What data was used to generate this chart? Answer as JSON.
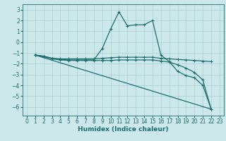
{
  "xlabel": "Humidex (Indice chaleur)",
  "xlim": [
    -0.5,
    23.5
  ],
  "ylim": [
    -6.8,
    3.5
  ],
  "yticks": [
    3,
    2,
    1,
    0,
    -1,
    -2,
    -3,
    -4,
    -5,
    -6
  ],
  "xticks": [
    0,
    1,
    2,
    3,
    4,
    5,
    6,
    7,
    8,
    9,
    10,
    11,
    12,
    13,
    14,
    15,
    16,
    17,
    18,
    19,
    20,
    21,
    22,
    23
  ],
  "bg_color": "#cce8ea",
  "line_color": "#1a6e6e",
  "grid_color": "#aacfcf",
  "lines": [
    {
      "x": [
        1,
        2,
        3,
        4,
        5,
        6,
        7,
        8,
        9,
        10,
        11,
        12,
        13,
        14,
        15,
        16,
        17,
        18,
        19,
        20,
        21,
        22
      ],
      "y": [
        -1.2,
        -1.3,
        -1.5,
        -1.6,
        -1.65,
        -1.65,
        -1.65,
        -1.65,
        -0.6,
        1.2,
        2.8,
        1.5,
        1.6,
        1.6,
        2.0,
        -1.2,
        -1.8,
        -2.7,
        -3.1,
        -3.3,
        -4.0,
        -6.2
      ],
      "marker": true
    },
    {
      "x": [
        1,
        2,
        3,
        4,
        5,
        6,
        7,
        8,
        9,
        10,
        11,
        12,
        13,
        14,
        15,
        16,
        17,
        18,
        19,
        20,
        21,
        22
      ],
      "y": [
        -1.2,
        -1.3,
        -1.5,
        -1.55,
        -1.55,
        -1.55,
        -1.55,
        -1.55,
        -1.5,
        -1.45,
        -1.4,
        -1.4,
        -1.4,
        -1.4,
        -1.4,
        -1.5,
        -1.55,
        -1.6,
        -1.65,
        -1.7,
        -1.75,
        -1.8
      ],
      "marker": true
    },
    {
      "x": [
        1,
        22
      ],
      "y": [
        -1.2,
        -6.2
      ],
      "marker": false
    },
    {
      "x": [
        1,
        2,
        3,
        4,
        5,
        6,
        7,
        8,
        9,
        10,
        11,
        12,
        13,
        14,
        15,
        16,
        17,
        18,
        19,
        20,
        21,
        22
      ],
      "y": [
        -1.2,
        -1.35,
        -1.55,
        -1.65,
        -1.7,
        -1.7,
        -1.7,
        -1.7,
        -1.7,
        -1.7,
        -1.65,
        -1.65,
        -1.65,
        -1.65,
        -1.65,
        -1.75,
        -1.85,
        -2.1,
        -2.4,
        -2.8,
        -3.5,
        -6.2
      ],
      "marker": true
    }
  ],
  "marker": "+",
  "markersize": 3.5,
  "linewidth": 0.9,
  "tick_fontsize": 5.5,
  "xlabel_fontsize": 6.5
}
